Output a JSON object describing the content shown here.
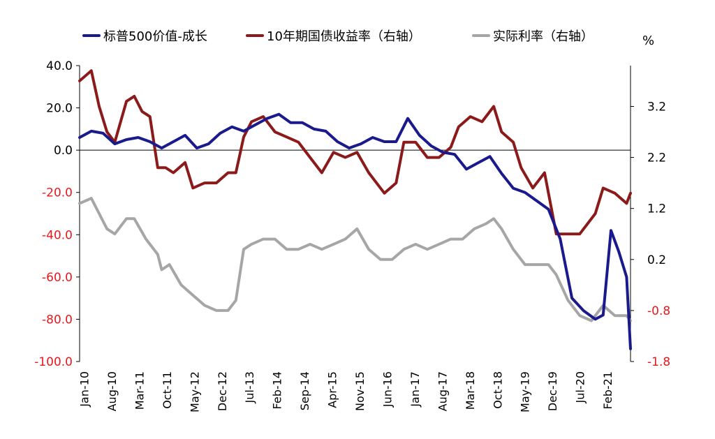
{
  "chart_data": {
    "type": "line",
    "title": "",
    "unit_right": "%",
    "x_tick_labels": [
      "Jan-10",
      "Aug-10",
      "Mar-11",
      "Oct-11",
      "May-12",
      "Dec-12",
      "Jul-13",
      "Feb-14",
      "Sep-14",
      "Apr-15",
      "Nov-15",
      "Jun-16",
      "Jan-17",
      "Aug-17",
      "Mar-18",
      "Oct-18",
      "May-19",
      "Dec-19",
      "Jul-20",
      "Feb-21"
    ],
    "x_range": [
      "2010-01",
      "2021-10"
    ],
    "y_left": {
      "ticks": [
        "40.0",
        "20.0",
        "0.0",
        "-20.0",
        "-40.0",
        "-60.0",
        "-80.0",
        "-100.0"
      ],
      "values": [
        40,
        20,
        0,
        -20,
        -40,
        -60,
        -80,
        -100
      ],
      "range": [
        -100,
        40
      ],
      "negative_color": "#e8191e"
    },
    "y_right": {
      "ticks": [
        "3.2",
        "2.2",
        "1.2",
        "0.2",
        "-0.8",
        "-1.8"
      ],
      "values": [
        3.2,
        2.2,
        1.2,
        0.2,
        -0.8,
        -1.8
      ],
      "range": [
        -1.8,
        4.0
      ],
      "negative_color": "#e8191e"
    },
    "grid": false,
    "legend_position": "top",
    "series": [
      {
        "name": "标普500价值-成长",
        "axis": "left",
        "color": "#1a1a8c",
        "x": [
          "2010-01",
          "2010-04",
          "2010-07",
          "2010-10",
          "2011-01",
          "2011-04",
          "2011-07",
          "2011-10",
          "2012-01",
          "2012-04",
          "2012-07",
          "2012-10",
          "2013-01",
          "2013-04",
          "2013-07",
          "2013-10",
          "2014-01",
          "2014-04",
          "2014-07",
          "2014-10",
          "2015-01",
          "2015-04",
          "2015-07",
          "2015-10",
          "2016-01",
          "2016-04",
          "2016-07",
          "2016-10",
          "2017-01",
          "2017-04",
          "2017-07",
          "2017-10",
          "2018-01",
          "2018-04",
          "2018-07",
          "2018-10",
          "2019-01",
          "2019-04",
          "2019-07",
          "2019-10",
          "2020-01",
          "2020-04",
          "2020-07",
          "2020-10",
          "2021-01",
          "2021-03",
          "2021-05",
          "2021-07",
          "2021-09",
          "2021-10"
        ],
        "y": [
          6,
          9,
          8,
          3,
          5,
          6,
          4,
          1,
          4,
          7,
          1,
          3,
          8,
          11,
          9,
          12,
          15,
          17,
          13,
          13,
          10,
          9,
          4,
          1,
          3,
          6,
          4,
          4,
          15,
          7,
          2,
          -1,
          -2,
          -9,
          -6,
          -3,
          -11,
          -18,
          -20,
          -24,
          -28,
          -42,
          -70,
          -76,
          -80,
          -78,
          -38,
          -48,
          -60,
          -94
        ]
      },
      {
        "name": "10年期国债收益率（右轴）",
        "axis": "right",
        "color": "#8b1a1a",
        "x": [
          "2010-01",
          "2010-04",
          "2010-06",
          "2010-08",
          "2010-10",
          "2011-01",
          "2011-03",
          "2011-05",
          "2011-07",
          "2011-09",
          "2011-11",
          "2012-01",
          "2012-04",
          "2012-06",
          "2012-09",
          "2012-12",
          "2013-03",
          "2013-05",
          "2013-07",
          "2013-09",
          "2013-12",
          "2014-03",
          "2014-06",
          "2014-09",
          "2014-12",
          "2015-03",
          "2015-06",
          "2015-09",
          "2015-12",
          "2016-03",
          "2016-07",
          "2016-10",
          "2016-12",
          "2017-03",
          "2017-06",
          "2017-09",
          "2017-12",
          "2018-02",
          "2018-05",
          "2018-08",
          "2018-11",
          "2019-01",
          "2019-04",
          "2019-06",
          "2019-09",
          "2019-12",
          "2020-03",
          "2020-06",
          "2020-09",
          "2021-01",
          "2021-03",
          "2021-06",
          "2021-09",
          "2021-10"
        ],
        "y": [
          3.7,
          3.9,
          3.2,
          2.7,
          2.5,
          3.3,
          3.4,
          3.1,
          3.0,
          2.0,
          2.0,
          1.9,
          2.1,
          1.6,
          1.7,
          1.7,
          1.9,
          1.9,
          2.6,
          2.9,
          3.0,
          2.7,
          2.6,
          2.5,
          2.2,
          1.9,
          2.3,
          2.2,
          2.3,
          1.9,
          1.5,
          1.7,
          2.5,
          2.5,
          2.2,
          2.2,
          2.4,
          2.8,
          3.0,
          2.9,
          3.2,
          2.7,
          2.5,
          2.0,
          1.6,
          1.9,
          0.7,
          0.7,
          0.7,
          1.1,
          1.6,
          1.5,
          1.3,
          1.5
        ]
      },
      {
        "name": "实际利率（右轴）",
        "axis": "right",
        "color": "#a6a6a6",
        "x": [
          "2010-01",
          "2010-04",
          "2010-08",
          "2010-10",
          "2011-01",
          "2011-03",
          "2011-06",
          "2011-09",
          "2011-10",
          "2011-12",
          "2012-03",
          "2012-06",
          "2012-09",
          "2012-12",
          "2013-03",
          "2013-05",
          "2013-07",
          "2013-09",
          "2013-12",
          "2014-03",
          "2014-06",
          "2014-09",
          "2014-12",
          "2015-03",
          "2015-06",
          "2015-09",
          "2015-12",
          "2016-03",
          "2016-06",
          "2016-09",
          "2016-12",
          "2017-03",
          "2017-06",
          "2017-09",
          "2017-12",
          "2018-03",
          "2018-06",
          "2018-09",
          "2018-11",
          "2019-01",
          "2019-04",
          "2019-07",
          "2019-10",
          "2020-01",
          "2020-03",
          "2020-06",
          "2020-09",
          "2020-12",
          "2021-03",
          "2021-06",
          "2021-09",
          "2021-10"
        ],
        "y": [
          1.3,
          1.4,
          0.8,
          0.7,
          1.0,
          1.0,
          0.6,
          0.3,
          0.0,
          0.1,
          -0.3,
          -0.5,
          -0.7,
          -0.8,
          -0.8,
          -0.6,
          0.4,
          0.5,
          0.6,
          0.6,
          0.4,
          0.4,
          0.5,
          0.4,
          0.5,
          0.6,
          0.8,
          0.4,
          0.2,
          0.2,
          0.4,
          0.5,
          0.4,
          0.5,
          0.6,
          0.6,
          0.8,
          0.9,
          1.0,
          0.8,
          0.4,
          0.1,
          0.1,
          0.1,
          -0.1,
          -0.6,
          -0.9,
          -1.0,
          -0.7,
          -0.9,
          -0.9,
          -1.0
        ]
      }
    ]
  }
}
